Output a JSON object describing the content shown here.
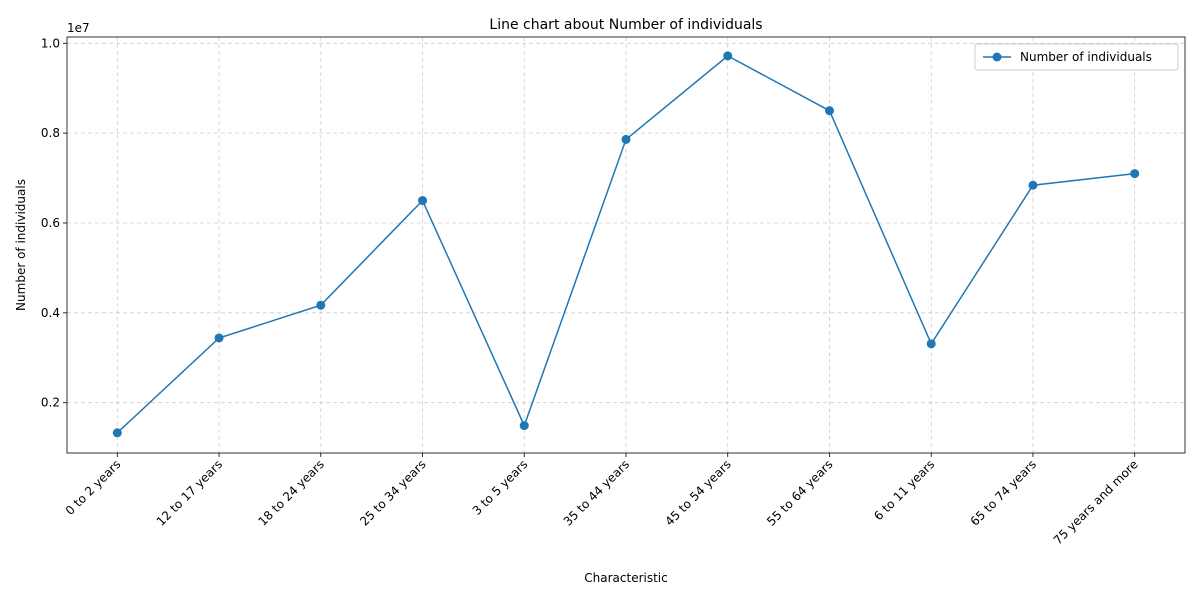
{
  "chart_data": {
    "type": "line",
    "title": "Line chart about Number of individuals",
    "xlabel": "Characteristic",
    "ylabel": "Number of individuals",
    "y_offset_label": "1e7",
    "categories": [
      "0 to 2 years",
      "12 to 17 years",
      "18 to 24 years",
      "25 to 34 years",
      "3 to 5 years",
      "35 to 44 years",
      "45 to 54 years",
      "55 to 64 years",
      "6 to 11 years",
      "65 to 74 years",
      "75 years and more"
    ],
    "series": [
      {
        "name": "Number of individuals",
        "color": "#1f77b4",
        "values": [
          1330000,
          3440000,
          4170000,
          6500000,
          1490000,
          7860000,
          9720000,
          8500000,
          3310000,
          6840000,
          7100000
        ]
      }
    ],
    "yticks": [
      2000000,
      4000000,
      6000000,
      8000000,
      10000000
    ],
    "ytick_labels": [
      "0.2",
      "0.4",
      "0.6",
      "0.8",
      "1.0"
    ],
    "ylim": [
      880000,
      10140000
    ],
    "grid": true,
    "legend_position": "top-right"
  }
}
